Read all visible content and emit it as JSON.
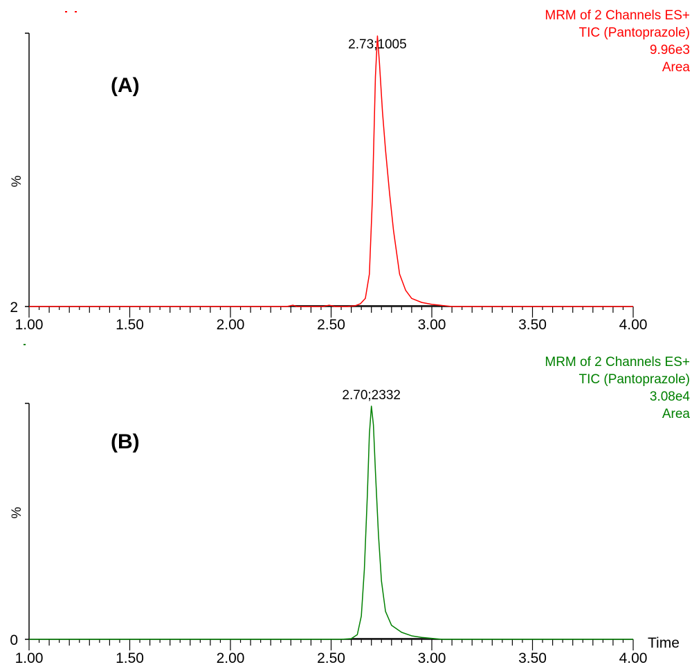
{
  "chart_data": [
    {
      "type": "line",
      "panel_label": "(A)",
      "color": "#ff0000",
      "info_lines": [
        "MRM of 2 Channels ES+",
        "TIC (Pantoprazole)",
        "9.96e3",
        "Area"
      ],
      "ylabel": "%",
      "y_min_label": "2",
      "xlim": [
        1.0,
        4.0
      ],
      "x_ticks": [
        "1.00",
        "1.50",
        "2.00",
        "2.50",
        "3.00",
        "3.50",
        "4.00"
      ],
      "xlabel": "",
      "peak_label": "2.73;1005",
      "peak": {
        "x": 2.73,
        "y": 100
      },
      "series": [
        {
          "x": [
            1.0,
            2.28,
            2.31,
            2.33,
            2.46,
            2.49,
            2.52,
            2.58,
            2.62,
            2.645,
            2.67,
            2.69,
            2.705,
            2.72,
            2.73,
            2.74,
            2.755,
            2.77,
            2.79,
            2.81,
            2.84,
            2.87,
            2.9,
            2.95,
            3.0,
            3.05,
            3.1,
            4.0
          ],
          "y": [
            0,
            0,
            0.5,
            0,
            0,
            0.5,
            0,
            0,
            0.3,
            1,
            3,
            12,
            40,
            85,
            100,
            90,
            72,
            58,
            42,
            28,
            12,
            6,
            3,
            1.5,
            0.8,
            0.4,
            0,
            0
          ]
        }
      ]
    },
    {
      "type": "line",
      "panel_label": "(B)",
      "color": "#008000",
      "info_lines": [
        "MRM of 2 Channels ES+",
        "TIC (Pantoprazole)",
        "3.08e4",
        "Area"
      ],
      "ylabel": "%",
      "y_min_label": "0",
      "xlim": [
        1.0,
        4.0
      ],
      "x_ticks": [
        "1.00",
        "1.50",
        "2.00",
        "2.50",
        "3.00",
        "3.50",
        "4.00"
      ],
      "xlabel": "Time",
      "peak_label": "2.70;2332",
      "peak": {
        "x": 2.7,
        "y": 100
      },
      "series": [
        {
          "x": [
            1.0,
            2.55,
            2.6,
            2.63,
            2.65,
            2.665,
            2.68,
            2.69,
            2.7,
            2.71,
            2.72,
            2.735,
            2.75,
            2.77,
            2.8,
            2.85,
            2.9,
            2.95,
            3.0,
            3.05,
            4.0
          ],
          "y": [
            0,
            0,
            0.3,
            2,
            10,
            30,
            62,
            88,
            100,
            92,
            72,
            45,
            25,
            12,
            6,
            3,
            1.5,
            0.8,
            0.4,
            0,
            0
          ]
        }
      ]
    }
  ]
}
